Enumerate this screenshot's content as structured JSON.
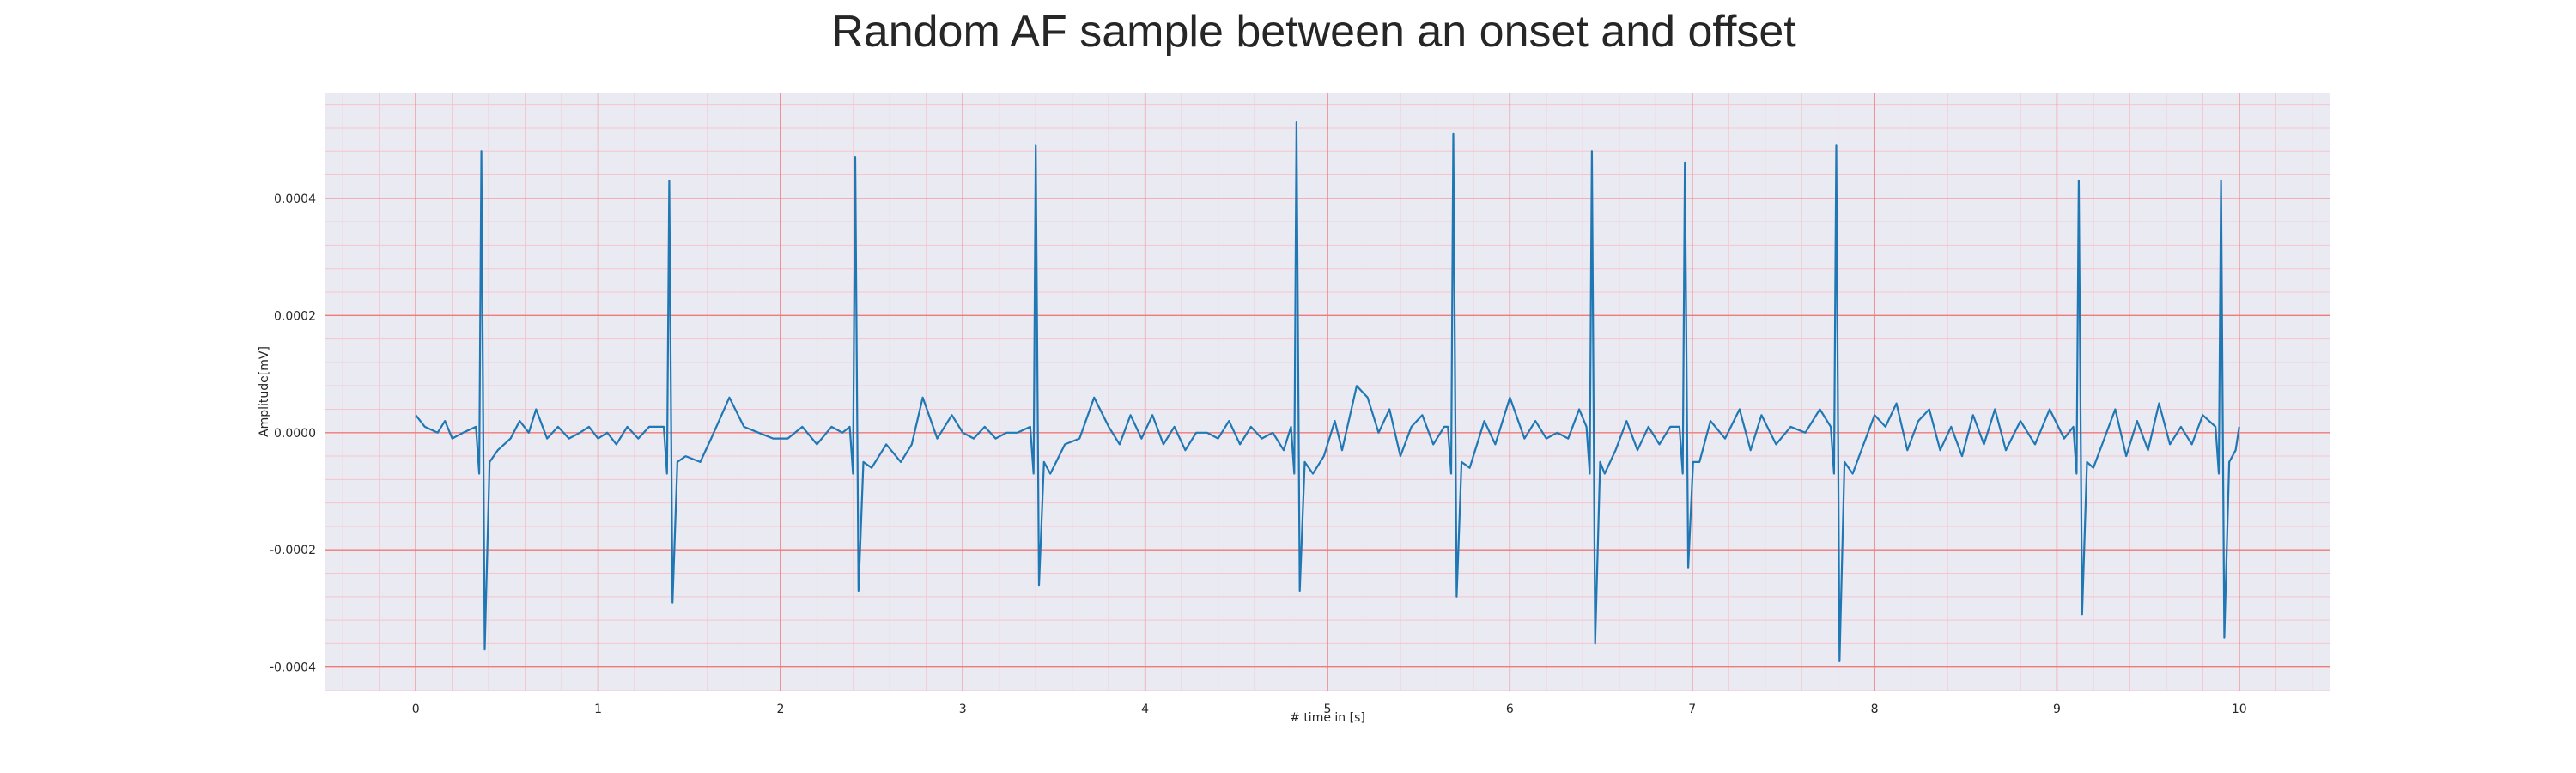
{
  "chart_data": {
    "type": "line",
    "title": "Random AF sample between an onset and offset",
    "xlabel": "# time in [s]",
    "ylabel": "Amplitude[mV]",
    "xlim": [
      -0.5,
      10.5
    ],
    "ylim": [
      -0.00044,
      0.00058
    ],
    "x_ticks": [
      0,
      1,
      2,
      3,
      4,
      5,
      6,
      7,
      8,
      9,
      10
    ],
    "x_tick_labels": [
      "0",
      "1",
      "2",
      "3",
      "4",
      "5",
      "6",
      "7",
      "8",
      "9",
      "10"
    ],
    "y_ticks": [
      -0.0004,
      -0.0002,
      0.0,
      0.0002,
      0.0004
    ],
    "y_tick_labels": [
      "-0.0004",
      "-0.0002",
      "0.0000",
      "0.0002",
      "0.0004"
    ],
    "x_minor_step": 0.2,
    "y_minor_step": 4e-05,
    "grid": true,
    "legend": "none",
    "colors": {
      "line": "#1f77b4",
      "plot_background": "#eaeaf2",
      "major_grid": "#f07a7a",
      "minor_grid": "#f6c4cd",
      "text": "#262626"
    },
    "series": [
      {
        "beats": [
          {
            "t": 0.36,
            "peak": 0.00048,
            "trough": -0.00037
          },
          {
            "t": 1.39,
            "peak": 0.00043,
            "trough": -0.00029
          },
          {
            "t": 2.41,
            "peak": 0.00047,
            "trough": -0.00027
          },
          {
            "t": 3.4,
            "peak": 0.00049,
            "trough": -0.00026
          },
          {
            "t": 4.83,
            "peak": 0.00053,
            "trough": -0.00027
          },
          {
            "t": 5.69,
            "peak": 0.00051,
            "trough": -0.00028
          },
          {
            "t": 6.45,
            "peak": 0.00048,
            "trough": -0.00036
          },
          {
            "t": 6.96,
            "peak": 0.00046,
            "trough": -0.00023
          },
          {
            "t": 7.79,
            "peak": 0.00049,
            "trough": -0.00039
          },
          {
            "t": 9.12,
            "peak": 0.00043,
            "trough": -0.00031
          },
          {
            "t": 9.9,
            "peak": 0.00043,
            "trough": -0.00035
          }
        ],
        "baseline": [
          [
            0.0,
            3e-05
          ],
          [
            0.05,
            1e-05
          ],
          [
            0.12,
            0.0
          ],
          [
            0.16,
            2e-05
          ],
          [
            0.2,
            -1e-05
          ],
          [
            0.26,
            0.0
          ],
          [
            0.45,
            -3e-05
          ],
          [
            0.52,
            -1e-05
          ],
          [
            0.57,
            2e-05
          ],
          [
            0.62,
            0.0
          ],
          [
            0.66,
            4e-05
          ],
          [
            0.72,
            -1e-05
          ],
          [
            0.78,
            1e-05
          ],
          [
            0.84,
            -1e-05
          ],
          [
            0.9,
            0.0
          ],
          [
            0.95,
            1e-05
          ],
          [
            1.0,
            -1e-05
          ],
          [
            1.05,
            0.0
          ],
          [
            1.1,
            -2e-05
          ],
          [
            1.16,
            1e-05
          ],
          [
            1.22,
            -1e-05
          ],
          [
            1.28,
            1e-05
          ],
          [
            1.48,
            -4e-05
          ],
          [
            1.56,
            -5e-05
          ],
          [
            1.62,
            -1e-05
          ],
          [
            1.72,
            6e-05
          ],
          [
            1.8,
            1e-05
          ],
          [
            1.88,
            0.0
          ],
          [
            1.96,
            -1e-05
          ],
          [
            2.04,
            -1e-05
          ],
          [
            2.12,
            1e-05
          ],
          [
            2.2,
            -2e-05
          ],
          [
            2.28,
            1e-05
          ],
          [
            2.34,
            0.0
          ],
          [
            2.5,
            -6e-05
          ],
          [
            2.58,
            -2e-05
          ],
          [
            2.66,
            -5e-05
          ],
          [
            2.72,
            -2e-05
          ],
          [
            2.78,
            6e-05
          ],
          [
            2.86,
            -1e-05
          ],
          [
            2.94,
            3e-05
          ],
          [
            3.0,
            0.0
          ],
          [
            3.06,
            -1e-05
          ],
          [
            3.12,
            1e-05
          ],
          [
            3.18,
            -1e-05
          ],
          [
            3.24,
            0.0
          ],
          [
            3.3,
            0.0
          ],
          [
            3.48,
            -7e-05
          ],
          [
            3.56,
            -2e-05
          ],
          [
            3.64,
            -1e-05
          ],
          [
            3.72,
            6e-05
          ],
          [
            3.8,
            1e-05
          ],
          [
            3.86,
            -2e-05
          ],
          [
            3.92,
            3e-05
          ],
          [
            3.98,
            -1e-05
          ],
          [
            4.04,
            3e-05
          ],
          [
            4.1,
            -2e-05
          ],
          [
            4.16,
            1e-05
          ],
          [
            4.22,
            -3e-05
          ],
          [
            4.28,
            0.0
          ],
          [
            4.34,
            0.0
          ],
          [
            4.4,
            -1e-05
          ],
          [
            4.46,
            2e-05
          ],
          [
            4.52,
            -2e-05
          ],
          [
            4.58,
            1e-05
          ],
          [
            4.64,
            -1e-05
          ],
          [
            4.7,
            0.0
          ],
          [
            4.76,
            -3e-05
          ],
          [
            4.92,
            -7e-05
          ],
          [
            4.98,
            -4e-05
          ],
          [
            5.04,
            2e-05
          ],
          [
            5.08,
            -3e-05
          ],
          [
            5.16,
            8e-05
          ],
          [
            5.22,
            6e-05
          ],
          [
            5.28,
            0.0
          ],
          [
            5.34,
            4e-05
          ],
          [
            5.4,
            -4e-05
          ],
          [
            5.46,
            1e-05
          ],
          [
            5.52,
            3e-05
          ],
          [
            5.58,
            -2e-05
          ],
          [
            5.64,
            1e-05
          ],
          [
            5.78,
            -6e-05
          ],
          [
            5.86,
            2e-05
          ],
          [
            5.92,
            -2e-05
          ],
          [
            6.0,
            6e-05
          ],
          [
            6.08,
            -1e-05
          ],
          [
            6.14,
            2e-05
          ],
          [
            6.2,
            -1e-05
          ],
          [
            6.26,
            0.0
          ],
          [
            6.32,
            -1e-05
          ],
          [
            6.38,
            4e-05
          ],
          [
            6.52,
            -7e-05
          ],
          [
            6.58,
            -3e-05
          ],
          [
            6.64,
            2e-05
          ],
          [
            6.7,
            -3e-05
          ],
          [
            6.76,
            1e-05
          ],
          [
            6.82,
            -2e-05
          ],
          [
            6.88,
            1e-05
          ],
          [
            7.04,
            -5e-05
          ],
          [
            7.1,
            2e-05
          ],
          [
            7.18,
            -1e-05
          ],
          [
            7.26,
            4e-05
          ],
          [
            7.32,
            -3e-05
          ],
          [
            7.38,
            3e-05
          ],
          [
            7.46,
            -2e-05
          ],
          [
            7.54,
            1e-05
          ],
          [
            7.62,
            0.0
          ],
          [
            7.7,
            4e-05
          ],
          [
            7.88,
            -7e-05
          ],
          [
            7.94,
            -2e-05
          ],
          [
            8.0,
            3e-05
          ],
          [
            8.06,
            1e-05
          ],
          [
            8.12,
            5e-05
          ],
          [
            8.18,
            -3e-05
          ],
          [
            8.24,
            2e-05
          ],
          [
            8.3,
            4e-05
          ],
          [
            8.36,
            -3e-05
          ],
          [
            8.42,
            1e-05
          ],
          [
            8.48,
            -4e-05
          ],
          [
            8.54,
            3e-05
          ],
          [
            8.6,
            -2e-05
          ],
          [
            8.66,
            4e-05
          ],
          [
            8.72,
            -3e-05
          ],
          [
            8.8,
            2e-05
          ],
          [
            8.88,
            -2e-05
          ],
          [
            8.96,
            4e-05
          ],
          [
            9.04,
            -1e-05
          ],
          [
            9.2,
            -6e-05
          ],
          [
            9.26,
            -1e-05
          ],
          [
            9.32,
            4e-05
          ],
          [
            9.38,
            -4e-05
          ],
          [
            9.44,
            2e-05
          ],
          [
            9.5,
            -3e-05
          ],
          [
            9.56,
            5e-05
          ],
          [
            9.62,
            -2e-05
          ],
          [
            9.68,
            1e-05
          ],
          [
            9.74,
            -2e-05
          ],
          [
            9.8,
            3e-05
          ],
          [
            9.98,
            -3e-05
          ],
          [
            10.0,
            1e-05
          ]
        ]
      }
    ]
  }
}
